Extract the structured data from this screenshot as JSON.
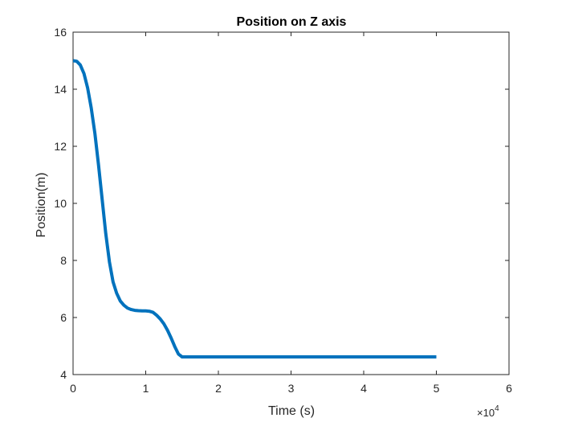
{
  "chart_data": {
    "type": "line",
    "title": "Position on Z axis",
    "xlabel": "Time (s)",
    "ylabel": "Position(m)",
    "x_exponent_label": "×10",
    "x_exponent_power": "4",
    "x_scale": 10000,
    "xlim": [
      0,
      60000
    ],
    "ylim": [
      4,
      16
    ],
    "xticks": [
      0,
      10000,
      20000,
      30000,
      40000,
      50000,
      60000
    ],
    "xtick_labels": [
      "0",
      "1",
      "2",
      "3",
      "4",
      "5",
      "6"
    ],
    "yticks": [
      4,
      6,
      8,
      10,
      12,
      14,
      16
    ],
    "ytick_labels": [
      "4",
      "6",
      "8",
      "10",
      "12",
      "14",
      "16"
    ],
    "grid": false,
    "line_color": "#0072BD",
    "series": [
      {
        "x": [
          0,
          500,
          1000,
          1500,
          2000,
          2500,
          3000,
          3500,
          4000,
          4500,
          5000,
          5500,
          6000,
          6500,
          7000,
          7500,
          8000,
          8500,
          9000,
          9500,
          10000,
          10500,
          11000,
          11500,
          12000,
          12500,
          13000,
          13500,
          14000,
          14500,
          15000,
          15500,
          16000,
          16500,
          20000,
          30000,
          40000,
          50000
        ],
        "y": [
          15.0,
          14.98,
          14.85,
          14.55,
          14.05,
          13.35,
          12.45,
          11.35,
          10.15,
          8.95,
          7.95,
          7.25,
          6.85,
          6.58,
          6.43,
          6.33,
          6.28,
          6.25,
          6.24,
          6.23,
          6.23,
          6.22,
          6.18,
          6.08,
          5.95,
          5.78,
          5.55,
          5.28,
          4.98,
          4.72,
          4.62,
          4.62,
          4.62,
          4.62,
          4.62,
          4.62,
          4.62,
          4.62
        ]
      }
    ]
  }
}
